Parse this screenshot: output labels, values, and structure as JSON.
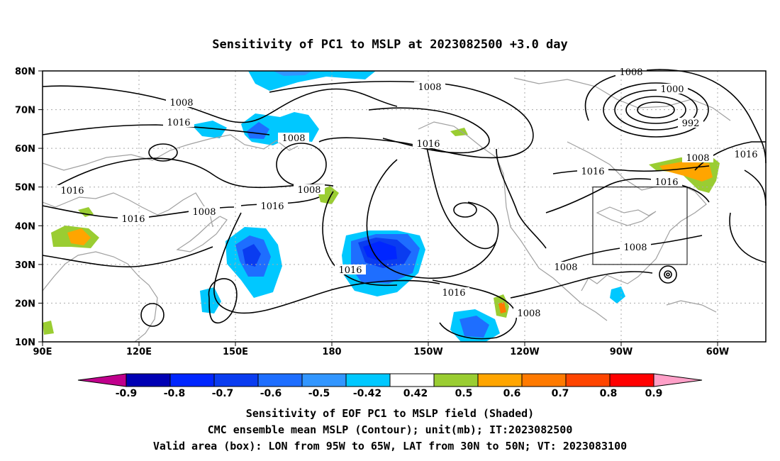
{
  "title": "Sensitivity of PC1 to MSLP at 2023082500 +3.0 day",
  "map": {
    "lat_labels": [
      "80N",
      "70N",
      "60N",
      "50N",
      "40N",
      "30N",
      "20N",
      "10N"
    ],
    "lon_labels": [
      "90E",
      "120E",
      "150E",
      "180",
      "150W",
      "120W",
      "90W",
      "60W"
    ],
    "contour_labels": [
      "1008",
      "1000",
      "992",
      "1008",
      "1016",
      "1008",
      "1008",
      "1016",
      "1016",
      "1008",
      "1016",
      "1008",
      "1016",
      "1016",
      "1008",
      "1016",
      "1016",
      "1008",
      "1008",
      "1008",
      "1016",
      "1016"
    ],
    "valid_box": {
      "lon_from": "95W",
      "lon_to": "65W",
      "lat_from": "30N",
      "lat_to": "50N"
    }
  },
  "colorbar": {
    "labels": [
      "-0.9",
      "-0.8",
      "-0.7",
      "-0.6",
      "-0.5",
      "-0.42",
      "0.42",
      "0.5",
      "0.6",
      "0.7",
      "0.8",
      "0.9"
    ],
    "colors": [
      "#c0008c",
      "#0000b4",
      "#0026ff",
      "#0a3cf0",
      "#1e6eff",
      "#3296ff",
      "#00c8ff",
      "#ffffff",
      "#9acd32",
      "#ffa500",
      "#ff7a00",
      "#ff4500",
      "#ff0000",
      "#ffa0c8"
    ]
  },
  "footer": {
    "line1": "Sensitivity of EOF PC1 to MSLP field (Shaded)",
    "line2": "CMC ensemble mean MSLP (Contour); unit(mb); IT:2023082500",
    "line3": "Valid area (box): LON from 95W to 65W, LAT from 30N to 50N; VT: 2023083100"
  }
}
